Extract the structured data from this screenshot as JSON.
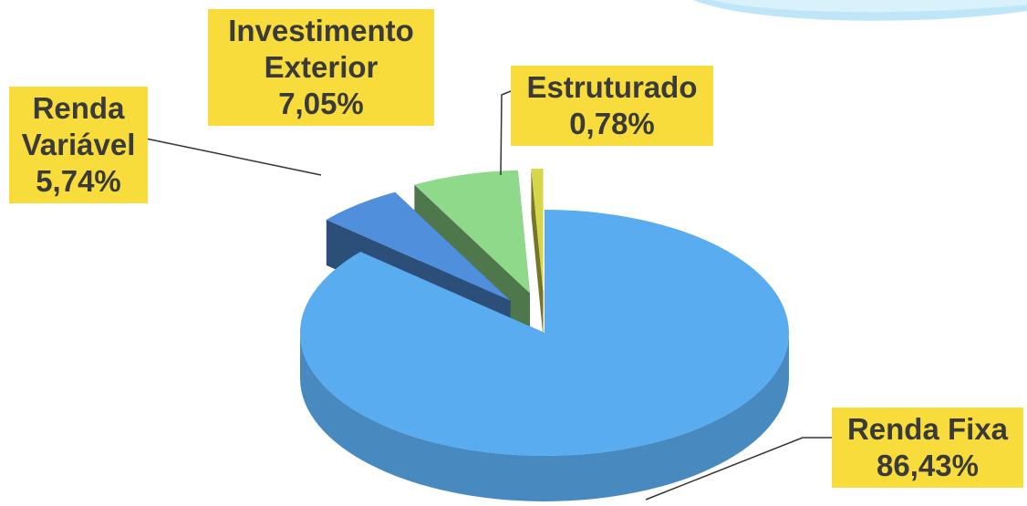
{
  "chart_data": {
    "type": "pie",
    "categories": [
      "Renda Fixa",
      "Renda Variável",
      "Investimento Exterior",
      "Estruturado"
    ],
    "values": [
      86.43,
      5.74,
      7.05,
      0.78
    ],
    "value_labels": [
      "86,43%",
      "5,74%",
      "7,05%",
      "0,78%"
    ],
    "colors": [
      "#5aacf0",
      "#4f8fdc",
      "#8fd98a",
      "#d6d64a"
    ]
  }
}
